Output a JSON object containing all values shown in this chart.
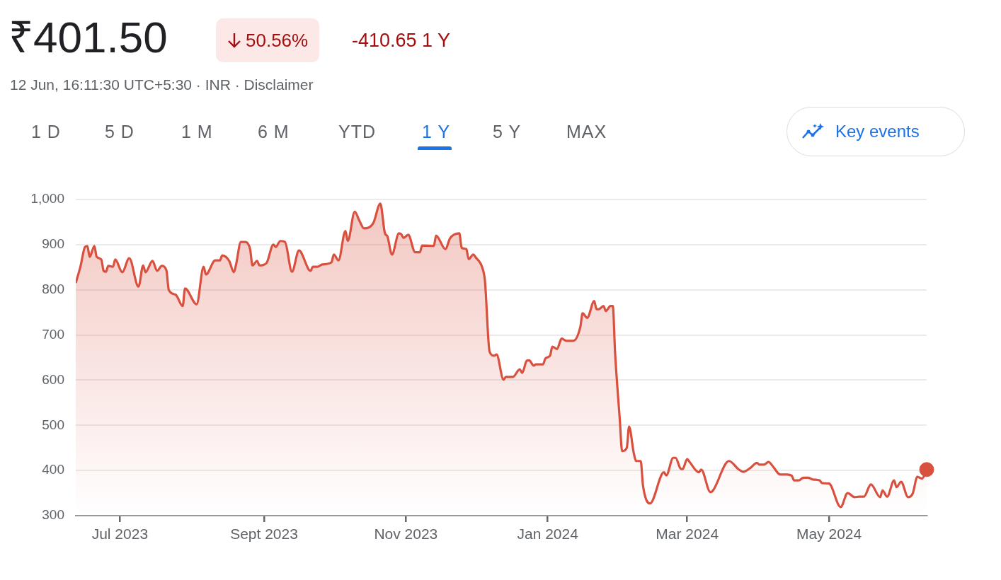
{
  "chart_data": {
    "type": "area",
    "title": "₹401.50",
    "subtitle": "12 Jun, 16:11:30 UTC+5:30 · INR · Disclaimer",
    "annotations": [
      "50.56%",
      "-410.65 1 Y",
      "1 D",
      "5 D",
      "1 M",
      "6 M",
      "YTD",
      "1 Y",
      "5 Y",
      "MAX",
      "Key events"
    ],
    "grid": "y",
    "legend": false,
    "xlim": [
      "2023-06-12",
      "2024-06-12"
    ],
    "xticks": [
      {
        "value": "2023-07-01",
        "label": "Jul 2023"
      },
      {
        "value": "2023-09-01",
        "label": "Sept 2023"
      },
      {
        "value": "2023-11-01",
        "label": "Nov 2023"
      },
      {
        "value": "2024-01-01",
        "label": "Jan 2024"
      },
      {
        "value": "2024-03-01",
        "label": "Mar 2024"
      },
      {
        "value": "2024-05-01",
        "label": "May 2024"
      }
    ],
    "ylim": [
      300,
      1000
    ],
    "yticks": [
      300,
      400,
      500,
      600,
      700,
      800,
      900,
      {
        "value": 1000,
        "label": "1,000"
      }
    ],
    "series": [
      {
        "color": "#d9503f",
        "x": [
          "2023-06-12",
          "2023-06-14",
          "2023-06-16",
          "2023-06-17",
          "2023-06-18",
          "2023-06-20",
          "2023-06-21",
          "2023-06-23",
          "2023-06-24",
          "2023-06-25",
          "2023-06-26",
          "2023-06-28",
          "2023-06-29",
          "2023-07-02",
          "2023-07-05",
          "2023-07-09",
          "2023-07-11",
          "2023-07-12",
          "2023-07-15",
          "2023-07-17",
          "2023-07-19",
          "2023-07-21",
          "2023-07-22",
          "2023-07-25",
          "2023-07-28",
          "2023-07-29",
          "2023-08-03",
          "2023-08-06",
          "2023-08-07",
          "2023-08-11",
          "2023-08-13",
          "2023-08-14",
          "2023-08-17",
          "2023-08-19",
          "2023-08-20",
          "2023-08-22",
          "2023-08-24",
          "2023-08-26",
          "2023-08-27",
          "2023-08-29",
          "2023-08-30",
          "2023-09-02",
          "2023-09-05",
          "2023-09-06",
          "2023-09-08",
          "2023-09-10",
          "2023-09-13",
          "2023-09-16",
          "2023-09-21",
          "2023-09-22",
          "2023-09-24",
          "2023-09-26",
          "2023-09-30",
          "2023-10-01",
          "2023-10-03",
          "2023-10-06",
          "2023-10-07",
          "2023-10-10",
          "2023-10-12",
          "2023-10-14",
          "2023-10-18",
          "2023-10-21",
          "2023-10-23",
          "2023-10-24",
          "2023-10-26",
          "2023-10-29",
          "2023-10-30",
          "2023-10-31",
          "2023-11-02",
          "2023-11-05",
          "2023-11-07",
          "2023-11-08",
          "2023-11-13",
          "2023-11-14",
          "2023-11-18",
          "2023-11-20",
          "2023-11-24",
          "2023-11-25",
          "2023-11-27",
          "2023-11-28",
          "2023-11-30",
          "2023-12-01",
          "2023-12-04",
          "2023-12-05",
          "2023-12-07",
          "2023-12-09",
          "2023-12-10",
          "2023-12-13",
          "2023-12-14",
          "2023-12-17",
          "2023-12-20",
          "2023-12-21",
          "2023-12-23",
          "2023-12-24",
          "2023-12-26",
          "2023-12-27",
          "2023-12-30",
          "2023-12-31",
          "2024-01-02",
          "2024-01-03",
          "2024-01-05",
          "2024-01-07",
          "2024-01-09",
          "2024-01-12",
          "2024-01-15",
          "2024-01-16",
          "2024-01-18",
          "2024-01-21",
          "2024-01-22",
          "2024-01-23",
          "2024-01-25",
          "2024-01-26",
          "2024-01-28",
          "2024-01-29",
          "2024-01-30",
          "2024-02-01",
          "2024-02-02",
          "2024-02-04",
          "2024-02-05",
          "2024-02-07",
          "2024-02-08",
          "2024-02-10",
          "2024-02-11",
          "2024-02-14",
          "2024-02-20",
          "2024-02-21",
          "2024-02-24",
          "2024-02-25",
          "2024-02-27",
          "2024-02-28",
          "2024-03-01",
          "2024-03-02",
          "2024-03-06",
          "2024-03-07",
          "2024-03-11",
          "2024-03-12",
          "2024-03-19",
          "2024-03-23",
          "2024-03-25",
          "2024-03-28",
          "2024-03-31",
          "2024-04-01",
          "2024-04-03",
          "2024-04-05",
          "2024-04-07",
          "2024-04-10",
          "2024-04-13",
          "2024-04-15",
          "2024-04-16",
          "2024-04-18",
          "2024-04-20",
          "2024-04-22",
          "2024-04-24",
          "2024-04-27",
          "2024-04-28",
          "2024-05-01",
          "2024-05-06",
          "2024-05-09",
          "2024-05-12",
          "2024-05-14",
          "2024-05-16",
          "2024-05-19",
          "2024-05-23",
          "2024-05-24",
          "2024-05-26",
          "2024-05-29",
          "2024-05-30",
          "2024-06-01",
          "2024-06-04",
          "2024-06-06",
          "2024-06-08",
          "2024-06-10",
          "2024-06-12"
        ],
        "values": [
          815,
          851,
          895,
          897,
          873,
          897,
          873,
          867,
          842,
          840,
          853,
          851,
          867,
          839,
          870,
          807,
          854,
          839,
          864,
          842,
          853,
          843,
          800,
          789,
          764,
          803,
          768,
          851,
          834,
          865,
          865,
          876,
          864,
          839,
          857,
          906,
          906,
          890,
          854,
          864,
          854,
          859,
          900,
          895,
          908,
          906,
          840,
          887,
          842,
          851,
          851,
          856,
          861,
          878,
          865,
          930,
          908,
          973,
          953,
          936,
          948,
          991,
          925,
          919,
          878,
          925,
          923,
          915,
          922,
          883,
          883,
          898,
          897,
          920,
          890,
          914,
          925,
          893,
          890,
          868,
          878,
          872,
          847,
          820,
          663,
          654,
          657,
          601,
          607,
          607,
          624,
          616,
          643,
          644,
          632,
          635,
          635,
          648,
          654,
          674,
          669,
          692,
          687,
          687,
          717,
          748,
          738,
          775,
          757,
          757,
          764,
          753,
          764,
          764,
          659,
          513,
          443,
          450,
          497,
          439,
          421,
          421,
          366,
          327,
          396,
          389,
          428,
          428,
          405,
          403,
          425,
          419,
          396,
          402,
          352,
          355,
          421,
          403,
          397,
          405,
          417,
          413,
          413,
          419,
          408,
          391,
          391,
          388,
          378,
          378,
          384,
          384,
          380,
          378,
          372,
          371,
          319,
          350,
          341,
          342,
          342,
          369,
          341,
          356,
          342,
          378,
          363,
          375,
          341,
          349,
          386,
          382,
          402
        ]
      },
      {
        "type": "scatter",
        "color": "#d9503f",
        "marker": "circle",
        "x": [
          "2024-06-12"
        ],
        "values": [
          402
        ]
      }
    ]
  }
}
